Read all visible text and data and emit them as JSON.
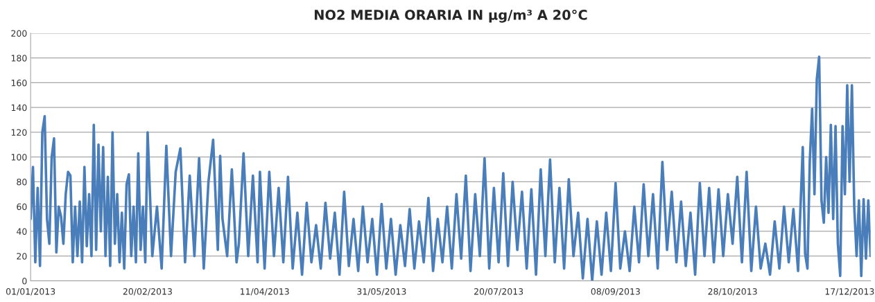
{
  "chart_data": {
    "type": "line",
    "title": "NO2 MEDIA ORARIA IN µg/m³ A 20°C",
    "series": [
      {
        "color": "#4a7ebb",
        "x": [
          "2013-01-01",
          "2013-01-02",
          "2013-01-03",
          "2013-01-04",
          "2013-01-05",
          "2013-01-06",
          "2013-01-07",
          "2013-01-08",
          "2013-01-09",
          "2013-01-10",
          "2013-01-11",
          "2013-01-12",
          "2013-01-13",
          "2013-01-14",
          "2013-01-15",
          "2013-01-16",
          "2013-01-17",
          "2013-01-18",
          "2013-01-19",
          "2013-01-20",
          "2013-01-21",
          "2013-01-22",
          "2013-01-23",
          "2013-01-24",
          "2013-01-25",
          "2013-01-26",
          "2013-01-27",
          "2013-01-28",
          "2013-01-29",
          "2013-01-30",
          "2013-01-31",
          "2013-02-01",
          "2013-02-02",
          "2013-02-03",
          "2013-02-04",
          "2013-02-05",
          "2013-02-06",
          "2013-02-07",
          "2013-02-08",
          "2013-02-09",
          "2013-02-10",
          "2013-02-11",
          "2013-02-12",
          "2013-02-13",
          "2013-02-14",
          "2013-02-15",
          "2013-02-16",
          "2013-02-17",
          "2013-02-18",
          "2013-02-19",
          "2013-02-20",
          "2013-02-22",
          "2013-02-24",
          "2013-02-26",
          "2013-02-28",
          "2013-03-02",
          "2013-03-04",
          "2013-03-06",
          "2013-03-08",
          "2013-03-10",
          "2013-03-12",
          "2013-03-14",
          "2013-03-16",
          "2013-03-18",
          "2013-03-20",
          "2013-03-22",
          "2013-03-23",
          "2013-03-24",
          "2013-03-26",
          "2013-03-28",
          "2013-03-30",
          "2013-03-31",
          "2013-04-02",
          "2013-04-04",
          "2013-04-06",
          "2013-04-08",
          "2013-04-09",
          "2013-04-11",
          "2013-04-13",
          "2013-04-15",
          "2013-04-17",
          "2013-04-19",
          "2013-04-21",
          "2013-04-23",
          "2013-04-25",
          "2013-04-27",
          "2013-04-29",
          "2013-05-01",
          "2013-05-03",
          "2013-05-05",
          "2013-05-07",
          "2013-05-09",
          "2013-05-11",
          "2013-05-13",
          "2013-05-15",
          "2013-05-17",
          "2013-05-19",
          "2013-05-21",
          "2013-05-23",
          "2013-05-25",
          "2013-05-27",
          "2013-05-29",
          "2013-05-31",
          "2013-06-02",
          "2013-06-04",
          "2013-06-06",
          "2013-06-08",
          "2013-06-10",
          "2013-06-12",
          "2013-06-14",
          "2013-06-16",
          "2013-06-18",
          "2013-06-20",
          "2013-06-22",
          "2013-06-24",
          "2013-06-26",
          "2013-06-28",
          "2013-06-30",
          "2013-07-02",
          "2013-07-04",
          "2013-07-06",
          "2013-07-08",
          "2013-07-10",
          "2013-07-12",
          "2013-07-14",
          "2013-07-16",
          "2013-07-18",
          "2013-07-20",
          "2013-07-22",
          "2013-07-24",
          "2013-07-26",
          "2013-07-28",
          "2013-07-30",
          "2013-08-01",
          "2013-08-03",
          "2013-08-05",
          "2013-08-07",
          "2013-08-09",
          "2013-08-11",
          "2013-08-13",
          "2013-08-15",
          "2013-08-17",
          "2013-08-19",
          "2013-08-21",
          "2013-08-23",
          "2013-08-25",
          "2013-08-27",
          "2013-08-29",
          "2013-08-31",
          "2013-09-02",
          "2013-09-04",
          "2013-09-06",
          "2013-09-08",
          "2013-09-10",
          "2013-09-12",
          "2013-09-14",
          "2013-09-16",
          "2013-09-18",
          "2013-09-20",
          "2013-09-22",
          "2013-09-24",
          "2013-09-26",
          "2013-09-28",
          "2013-09-30",
          "2013-10-02",
          "2013-10-04",
          "2013-10-06",
          "2013-10-08",
          "2013-10-10",
          "2013-10-12",
          "2013-10-14",
          "2013-10-16",
          "2013-10-18",
          "2013-10-20",
          "2013-10-22",
          "2013-10-24",
          "2013-10-26",
          "2013-10-28",
          "2013-10-30",
          "2013-11-01",
          "2013-11-03",
          "2013-11-05",
          "2013-11-07",
          "2013-11-09",
          "2013-11-11",
          "2013-11-13",
          "2013-11-15",
          "2013-11-17",
          "2013-11-19",
          "2013-11-21",
          "2013-11-23",
          "2013-11-25",
          "2013-11-27",
          "2013-11-28",
          "2013-11-29",
          "2013-11-30",
          "2013-12-01",
          "2013-12-02",
          "2013-12-03",
          "2013-12-04",
          "2013-12-05",
          "2013-12-06",
          "2013-12-07",
          "2013-12-08",
          "2013-12-09",
          "2013-12-10",
          "2013-12-11",
          "2013-12-12",
          "2013-12-13",
          "2013-12-14",
          "2013-12-15",
          "2013-12-16",
          "2013-12-17",
          "2013-12-18",
          "2013-12-19",
          "2013-12-20",
          "2013-12-21",
          "2013-12-22",
          "2013-12-23",
          "2013-12-24",
          "2013-12-25",
          "2013-12-26"
        ],
        "values": [
          50,
          92,
          15,
          75,
          12,
          120,
          133,
          50,
          30,
          100,
          115,
          23,
          60,
          52,
          30,
          70,
          88,
          85,
          15,
          60,
          20,
          64,
          15,
          92,
          28,
          70,
          20,
          126,
          25,
          110,
          40,
          108,
          20,
          84,
          12,
          120,
          30,
          70,
          15,
          55,
          10,
          78,
          86,
          20,
          60,
          15,
          103,
          25,
          60,
          15,
          120,
          20,
          60,
          10,
          109,
          20,
          88,
          107,
          15,
          85,
          20,
          99,
          10,
          80,
          114,
          25,
          101,
          50,
          20,
          90,
          15,
          30,
          103,
          20,
          85,
          15,
          88,
          10,
          88,
          20,
          75,
          15,
          84,
          10,
          55,
          5,
          63,
          15,
          45,
          10,
          63,
          18,
          55,
          5,
          72,
          12,
          50,
          8,
          60,
          15,
          50,
          5,
          62,
          10,
          50,
          5,
          45,
          12,
          58,
          10,
          48,
          15,
          67,
          8,
          50,
          15,
          60,
          10,
          70,
          18,
          85,
          8,
          70,
          20,
          99,
          10,
          75,
          15,
          87,
          12,
          80,
          25,
          72,
          10,
          74,
          5,
          90,
          20,
          98,
          15,
          75,
          10,
          82,
          20,
          55,
          2,
          50,
          0,
          48,
          5,
          55,
          8,
          79,
          10,
          40,
          8,
          60,
          15,
          78,
          20,
          70,
          10,
          96,
          25,
          72,
          15,
          64,
          12,
          55,
          5,
          79,
          20,
          75,
          15,
          74,
          20,
          70,
          30,
          84,
          15,
          88,
          8,
          60,
          10,
          30,
          5,
          48,
          10,
          60,
          15,
          58,
          8,
          108,
          22,
          10,
          97,
          139,
          70,
          163,
          181,
          65,
          47,
          100,
          55,
          126,
          50,
          125,
          30,
          4,
          125,
          70,
          158,
          80,
          158,
          60,
          20,
          65,
          4,
          66,
          18,
          65,
          20
        ]
      }
    ],
    "xlim": [
      "2013-01-01",
      "2013-12-26"
    ],
    "xticks": [
      {
        "value": "2013-01-01",
        "label": "01/01/2013"
      },
      {
        "value": "2013-02-20",
        "label": "20/02/2013"
      },
      {
        "value": "2013-04-11",
        "label": "11/04/2013"
      },
      {
        "value": "2013-05-31",
        "label": "31/05/2013"
      },
      {
        "value": "2013-07-20",
        "label": "20/07/2013"
      },
      {
        "value": "2013-09-08",
        "label": "08/09/2013"
      },
      {
        "value": "2013-10-28",
        "label": "28/10/2013"
      },
      {
        "value": "2013-12-17",
        "label": "17/12/2013"
      }
    ],
    "ylim": [
      0,
      200
    ],
    "yticks": [
      0,
      20,
      40,
      60,
      80,
      100,
      120,
      140,
      160,
      180,
      200
    ],
    "grid": "y",
    "legend": false,
    "marker": "none",
    "line_style": "solid"
  }
}
